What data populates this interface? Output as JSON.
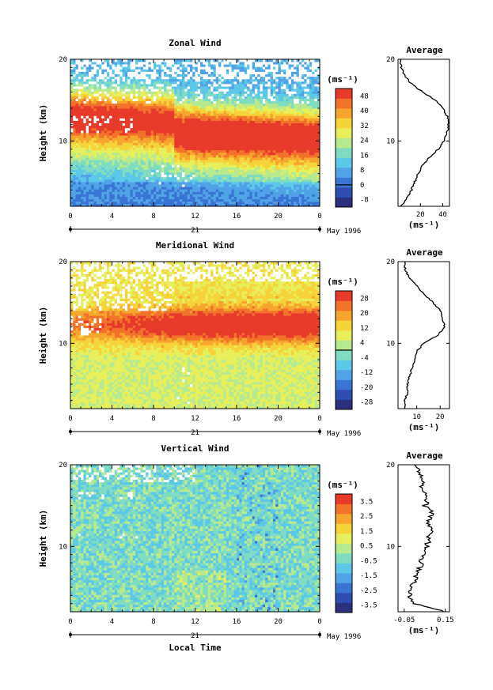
{
  "figure": {
    "date_label": "May 1996",
    "day_label": "21",
    "xlabel": "Local Time",
    "ylabel": "Height (km)",
    "unit_label": "(ms⁻¹)",
    "avg_title": "Average",
    "x_ticks": [
      "0",
      "4",
      "8",
      "12",
      "16",
      "20",
      "0"
    ],
    "y_ticks": [
      "10",
      "20"
    ]
  },
  "chart_data": [
    {
      "type": "heatmap",
      "title": "Zonal Wind",
      "xlabel": "Local Time",
      "ylabel": "Height (km)",
      "xlim": [
        0,
        24
      ],
      "ylim": [
        2,
        20
      ],
      "colorbar": {
        "label": "(ms⁻¹)",
        "ticks": [
          "48",
          "40",
          "32",
          "24",
          "16",
          "8",
          "0",
          "-8"
        ],
        "range": [
          -12,
          52
        ],
        "zero_line": 0,
        "colors": [
          "#2b2f7c",
          "#2f4cb2",
          "#3a75d6",
          "#4fa3e6",
          "#5cc8e8",
          "#7fdcc0",
          "#b7ea8f",
          "#e6ef5a",
          "#f7d33a",
          "#f6a62c",
          "#f2722a",
          "#e83a2a"
        ]
      },
      "average_profile": {
        "title": "Average",
        "xlabel": "(ms⁻¹)",
        "xticks": [
          "20",
          "40"
        ],
        "xlim": [
          0,
          46
        ],
        "height": [
          2,
          3,
          4,
          5,
          6,
          7,
          8,
          9,
          10,
          11,
          12,
          13,
          14,
          15,
          16,
          17,
          18,
          19,
          20
        ],
        "values": [
          3,
          8,
          12,
          15,
          18,
          22,
          28,
          36,
          41,
          44,
          45,
          44,
          40,
          33,
          22,
          12,
          6,
          3,
          2
        ]
      }
    },
    {
      "type": "heatmap",
      "title": "Meridional Wind",
      "xlabel": "Local Time",
      "ylabel": "Height (km)",
      "xlim": [
        0,
        24
      ],
      "ylim": [
        2,
        20
      ],
      "colorbar": {
        "label": "(ms⁻¹)",
        "ticks": [
          "28",
          "20",
          "12",
          "4",
          "-4",
          "-12",
          "-20",
          "-28"
        ],
        "range": [
          -32,
          32
        ],
        "zero_line": 0,
        "colors": [
          "#2b2f7c",
          "#2f4cb2",
          "#3a75d6",
          "#4fa3e6",
          "#5cc8e8",
          "#7fdcc0",
          "#b7ea8f",
          "#e6ef5a",
          "#f7d33a",
          "#f6a62c",
          "#f2722a",
          "#e83a2a"
        ]
      },
      "average_profile": {
        "title": "Average",
        "xlabel": "(ms⁻¹)",
        "xticks": [
          "10",
          "20"
        ],
        "xlim": [
          2,
          24
        ],
        "height": [
          2,
          3,
          4,
          5,
          6,
          7,
          8,
          9,
          10,
          11,
          12,
          13,
          14,
          15,
          16,
          17,
          18,
          19,
          20
        ],
        "values": [
          5,
          5,
          6,
          6,
          7,
          8,
          9,
          10,
          13,
          19,
          22,
          21,
          20,
          17,
          13,
          10,
          7,
          5,
          5
        ]
      }
    },
    {
      "type": "heatmap",
      "title": "Vertical Wind",
      "xlabel": "Local Time",
      "ylabel": "Height (km)",
      "xlim": [
        0,
        24
      ],
      "ylim": [
        2,
        20
      ],
      "colorbar": {
        "label": "(ms⁻¹)",
        "ticks": [
          "3.5",
          "2.5",
          "1.5",
          "0.5",
          "-0.5",
          "-1.5",
          "-2.5",
          "-3.5"
        ],
        "range": [
          -4,
          4
        ],
        "zero_line": null,
        "colors": [
          "#2b2f7c",
          "#2f4cb2",
          "#3a75d6",
          "#4fa3e6",
          "#5cc8e8",
          "#7fdcc0",
          "#b7ea8f",
          "#e6ef5a",
          "#f7d33a",
          "#f6a62c",
          "#f2722a",
          "#e83a2a"
        ]
      },
      "average_profile": {
        "title": "Average",
        "xlabel": "(ms⁻¹)",
        "xticks": [
          "-0.05",
          "0.15"
        ],
        "xlim": [
          -0.08,
          0.17
        ],
        "height": [
          2,
          3,
          4,
          5,
          6,
          7,
          8,
          9,
          10,
          11,
          12,
          13,
          14,
          15,
          16,
          17,
          18,
          19,
          20
        ],
        "values": [
          0.15,
          0.0,
          -0.03,
          -0.01,
          0.0,
          0.02,
          0.03,
          0.05,
          0.06,
          0.07,
          0.08,
          0.06,
          0.09,
          0.05,
          0.07,
          0.03,
          0.05,
          0.02,
          0.0
        ]
      }
    }
  ]
}
